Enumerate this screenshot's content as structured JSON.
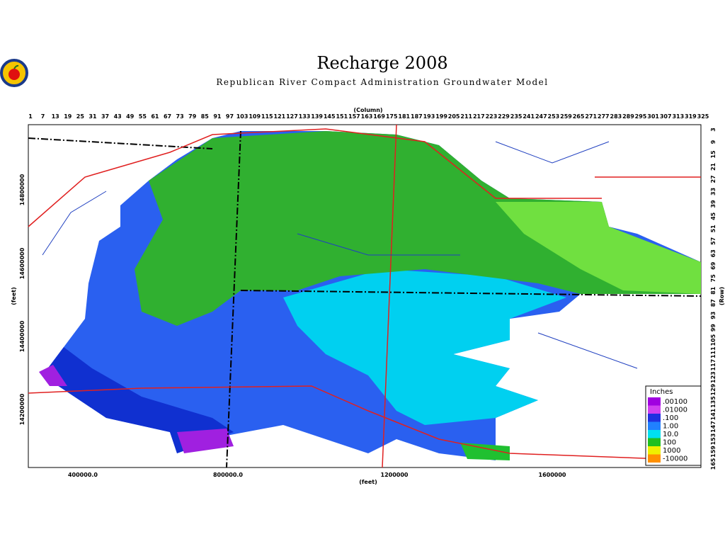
{
  "header": {
    "title": "Recharge 2008",
    "subtitle": "Republican River Compact Administration Groundwater Model"
  },
  "map": {
    "column_label": "(Column)",
    "column_ticks": [
      1,
      7,
      13,
      19,
      25,
      31,
      37,
      43,
      49,
      55,
      61,
      67,
      73,
      79,
      85,
      91,
      97,
      103,
      109,
      115,
      121,
      127,
      133,
      139,
      145,
      151,
      157,
      163,
      169,
      175,
      181,
      187,
      193,
      199,
      205,
      211,
      217,
      223,
      229,
      235,
      241,
      247,
      253,
      259,
      265,
      271,
      277,
      283,
      289,
      295,
      301,
      307,
      313,
      319,
      325
    ],
    "row_label": "(Row)",
    "row_ticks": [
      3,
      9,
      15,
      21,
      27,
      33,
      39,
      45,
      51,
      57,
      63,
      69,
      75,
      81,
      87,
      93,
      99,
      105,
      111,
      117,
      123,
      129,
      135,
      141,
      147,
      153,
      159,
      165
    ],
    "x_label": "(feet)",
    "x_ticks": [
      "400000.0",
      "800000.0",
      "1200000",
      "1600000"
    ],
    "y_label": "(feet)",
    "y_ticks": [
      "14800000",
      "14600000",
      "14400000",
      "14200000"
    ]
  },
  "legend": {
    "title": "Inches",
    "entries": [
      {
        "label": ".00100",
        "color": "#a000e0"
      },
      {
        "label": ".01000",
        "color": "#d040f0"
      },
      {
        "label": ".100",
        "color": "#2030e0"
      },
      {
        "label": "1.00",
        "color": "#2080ff"
      },
      {
        "label": "10.0",
        "color": "#00e0f0"
      },
      {
        "label": "100",
        "color": "#20c020"
      },
      {
        "label": "1000",
        "color": "#f0f000"
      },
      {
        "label": "-10000",
        "color": "#ff9000"
      }
    ]
  }
}
